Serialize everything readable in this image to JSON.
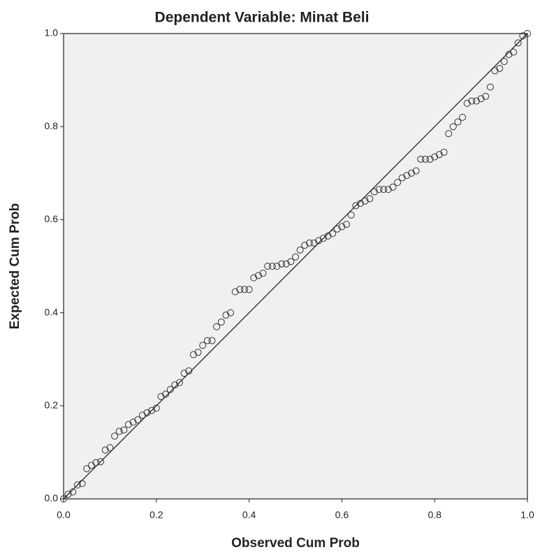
{
  "chart_data": {
    "type": "scatter",
    "title": "Dependent Variable: Minat Beli",
    "x_label": "Observed Cum Prob",
    "y_label": "Expected Cum Prob",
    "xlim": [
      0,
      1
    ],
    "ylim": [
      0,
      1
    ],
    "xticks": [
      {
        "value": 0,
        "label": "0.0"
      },
      0.2,
      0.4,
      0.6,
      0.8,
      {
        "value": 1,
        "label": "1.0"
      }
    ],
    "yticks": [
      {
        "value": 0,
        "label": "0.0"
      },
      0.2,
      0.4,
      0.6,
      0.8,
      {
        "value": 1,
        "label": "1.0"
      }
    ],
    "color": "#333333",
    "reference_line": true,
    "x": [
      0.0,
      0.01,
      0.02,
      0.03,
      0.04,
      0.05,
      0.06,
      0.07,
      0.08,
      0.09,
      0.1,
      0.11,
      0.12,
      0.13,
      0.14,
      0.15,
      0.16,
      0.17,
      0.18,
      0.19,
      0.2,
      0.21,
      0.22,
      0.23,
      0.24,
      0.25,
      0.26,
      0.27,
      0.28,
      0.29,
      0.3,
      0.31,
      0.32,
      0.33,
      0.34,
      0.35,
      0.36,
      0.37,
      0.38,
      0.39,
      0.4,
      0.41,
      0.42,
      0.43,
      0.44,
      0.45,
      0.46,
      0.47,
      0.48,
      0.49,
      0.5,
      0.51,
      0.52,
      0.53,
      0.54,
      0.55,
      0.56,
      0.57,
      0.58,
      0.59,
      0.6,
      0.61,
      0.62,
      0.63,
      0.64,
      0.65,
      0.66,
      0.67,
      0.68,
      0.69,
      0.7,
      0.71,
      0.72,
      0.73,
      0.74,
      0.75,
      0.76,
      0.77,
      0.78,
      0.79,
      0.8,
      0.81,
      0.82,
      0.83,
      0.84,
      0.85,
      0.86,
      0.87,
      0.88,
      0.89,
      0.9,
      0.91,
      0.92,
      0.93,
      0.94,
      0.95,
      0.96,
      0.97,
      0.98,
      0.99,
      1.0
    ],
    "values": [
      0.0,
      0.01,
      0.015,
      0.03,
      0.033,
      0.065,
      0.072,
      0.078,
      0.08,
      0.105,
      0.11,
      0.135,
      0.145,
      0.148,
      0.16,
      0.165,
      0.17,
      0.18,
      0.185,
      0.19,
      0.195,
      0.22,
      0.225,
      0.235,
      0.245,
      0.25,
      0.27,
      0.275,
      0.31,
      0.315,
      0.33,
      0.34,
      0.34,
      0.37,
      0.38,
      0.395,
      0.4,
      0.445,
      0.45,
      0.45,
      0.45,
      0.475,
      0.48,
      0.485,
      0.5,
      0.5,
      0.5,
      0.505,
      0.505,
      0.51,
      0.52,
      0.535,
      0.545,
      0.55,
      0.55,
      0.555,
      0.56,
      0.565,
      0.57,
      0.58,
      0.585,
      0.59,
      0.61,
      0.63,
      0.635,
      0.64,
      0.645,
      0.66,
      0.665,
      0.665,
      0.665,
      0.67,
      0.68,
      0.69,
      0.695,
      0.7,
      0.705,
      0.73,
      0.73,
      0.73,
      0.735,
      0.74,
      0.745,
      0.785,
      0.8,
      0.81,
      0.82,
      0.85,
      0.855,
      0.855,
      0.86,
      0.865,
      0.885,
      0.92,
      0.925,
      0.94,
      0.955,
      0.96,
      0.98,
      0.995,
      1.0
    ]
  }
}
